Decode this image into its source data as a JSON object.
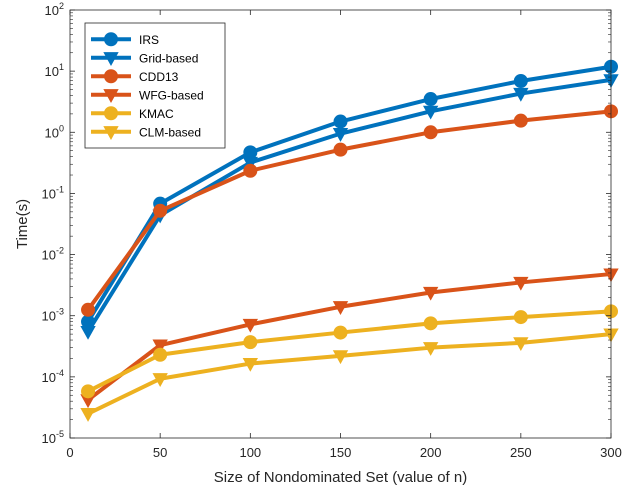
{
  "chart_data": {
    "type": "line",
    "title": "",
    "xlabel": "Size of Nondominated Set (value of n)",
    "ylabel": "Time(s)",
    "x": [
      10,
      50,
      100,
      150,
      200,
      250,
      300
    ],
    "xlim": [
      0,
      300
    ],
    "xticks": [
      0,
      50,
      100,
      150,
      200,
      250,
      300
    ],
    "ylim": [
      1e-05,
      100
    ],
    "yscale": "log",
    "yticks": [
      {
        "base": "10",
        "exp": "-5",
        "value": 1e-05
      },
      {
        "base": "10",
        "exp": "-4",
        "value": 0.0001
      },
      {
        "base": "10",
        "exp": "-3",
        "value": 0.001
      },
      {
        "base": "10",
        "exp": "-2",
        "value": 0.01
      },
      {
        "base": "10",
        "exp": "-1",
        "value": 0.1
      },
      {
        "base": "10",
        "exp": "0",
        "value": 1
      },
      {
        "base": "10",
        "exp": "1",
        "value": 10
      },
      {
        "base": "10",
        "exp": "2",
        "value": 100
      }
    ],
    "grid": false,
    "legend_position": "top-left",
    "series": [
      {
        "name": "IRS",
        "color": "#0072BD",
        "marker": "circle",
        "values": [
          0.0008,
          0.068,
          0.47,
          1.5,
          3.5,
          6.9,
          11.8
        ]
      },
      {
        "name": "Grid-based",
        "color": "#0072BD",
        "marker": "triangle-down",
        "values": [
          0.00055,
          0.044,
          0.32,
          0.95,
          2.2,
          4.3,
          7.2
        ]
      },
      {
        "name": "CDD13",
        "color": "#D95319",
        "marker": "circle",
        "values": [
          0.00125,
          0.052,
          0.235,
          0.52,
          1.0,
          1.55,
          2.2
        ]
      },
      {
        "name": "WFG-based",
        "color": "#D95319",
        "marker": "triangle-down",
        "values": [
          4.2e-05,
          0.00033,
          0.00072,
          0.0014,
          0.0024,
          0.0035,
          0.0048
        ]
      },
      {
        "name": "KMAC",
        "color": "#EDB120",
        "marker": "circle",
        "values": [
          5.8e-05,
          0.00023,
          0.00037,
          0.00053,
          0.00075,
          0.00095,
          0.00118
        ]
      },
      {
        "name": "CLM-based",
        "color": "#EDB120",
        "marker": "triangle-down",
        "values": [
          2.5e-05,
          9.3e-05,
          0.000165,
          0.00022,
          0.0003,
          0.00036,
          0.0005
        ]
      }
    ]
  }
}
